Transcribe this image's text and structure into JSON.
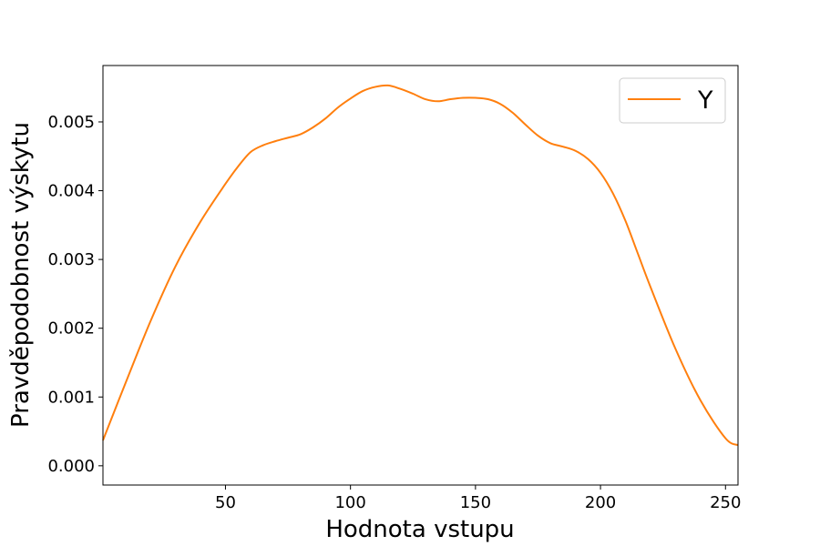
{
  "chart_data": {
    "type": "line",
    "xlabel": "Hodnota vstupu",
    "ylabel": "Pravděpodobnost výskytu",
    "xlim": [
      1,
      255
    ],
    "ylim": [
      -0.00028,
      0.00582
    ],
    "xticks": [
      50,
      100,
      150,
      200,
      250
    ],
    "yticks": [
      0.0,
      0.001,
      0.002,
      0.003,
      0.004,
      0.005
    ],
    "ytick_labels": [
      "0.000",
      "0.001",
      "0.002",
      "0.003",
      "0.004",
      "0.005"
    ],
    "xtick_labels": [
      "50",
      "100",
      "150",
      "200",
      "250"
    ],
    "grid": false,
    "legend_position": "top-right",
    "series": [
      {
        "name": "Y",
        "color": "#ff7f0e",
        "x": [
          1,
          10,
          20,
          30,
          40,
          50,
          55,
          60,
          65,
          70,
          75,
          80,
          85,
          90,
          95,
          100,
          105,
          110,
          115,
          120,
          125,
          130,
          135,
          140,
          145,
          150,
          155,
          160,
          165,
          170,
          175,
          180,
          185,
          190,
          195,
          200,
          205,
          210,
          215,
          220,
          230,
          240,
          250,
          255
        ],
        "y": [
          0.00037,
          0.0012,
          0.0021,
          0.0029,
          0.00355,
          0.0041,
          0.00435,
          0.00456,
          0.00466,
          0.00472,
          0.00477,
          0.00482,
          0.00492,
          0.00505,
          0.00521,
          0.00534,
          0.00545,
          0.00551,
          0.00553,
          0.00548,
          0.00541,
          0.00533,
          0.0053,
          0.00533,
          0.00535,
          0.00535,
          0.00533,
          0.00526,
          0.00513,
          0.00496,
          0.0048,
          0.00469,
          0.00464,
          0.00458,
          0.00446,
          0.00426,
          0.00396,
          0.00356,
          0.00308,
          0.0026,
          0.0017,
          0.00095,
          0.0004,
          0.0003
        ]
      }
    ]
  }
}
